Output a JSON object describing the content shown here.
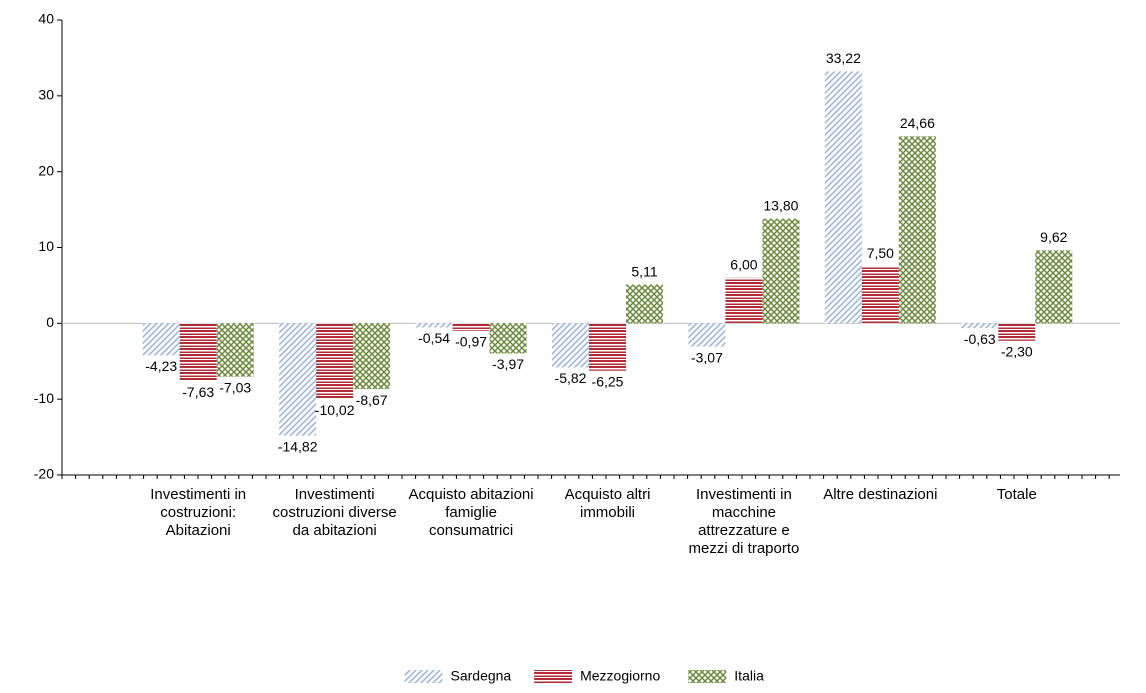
{
  "chart_data": {
    "type": "bar",
    "categories": [
      "Investimenti in costruzioni: Abitazioni",
      "Investimenti costruzioni diverse da abitazioni",
      "Acquisto abitazioni famiglie consumatrici",
      "Acquisto altri immobili",
      "Investimenti in macchine attrezzature e mezzi di traporto",
      "Altre destinazioni",
      "Totale"
    ],
    "series": [
      {
        "name": "Sardegna",
        "color": "#9fb6de",
        "values": [
          -4.23,
          -14.82,
          -0.54,
          -5.82,
          -3.07,
          33.22,
          -0.63
        ],
        "value_labels": [
          "-4,23",
          "-14,82",
          "-0,54",
          "-5,82",
          "-3,07",
          "33,22",
          "-0,63"
        ]
      },
      {
        "name": "Mezzogiorno",
        "color": "#b22a35",
        "values": [
          -7.63,
          -10.02,
          -0.97,
          -6.25,
          6.0,
          7.5,
          -2.3
        ],
        "value_labels": [
          "-7,63",
          "-10,02",
          "-0,97",
          "-6,25",
          "6,00",
          "7,50",
          "-2,30"
        ]
      },
      {
        "name": "Italia",
        "color": "#6a8a3c",
        "values": [
          -7.03,
          -8.67,
          -3.97,
          5.11,
          13.8,
          24.66,
          9.62
        ],
        "value_labels": [
          "-7,03",
          "-8,67",
          "-3,97",
          "5,11",
          "13,80",
          "24,66",
          "9,62"
        ]
      }
    ],
    "ylim": [
      -20,
      40
    ],
    "yticks": [
      -20,
      -10,
      0,
      10,
      20,
      30,
      40
    ],
    "grid": false,
    "legend": "bottom"
  }
}
